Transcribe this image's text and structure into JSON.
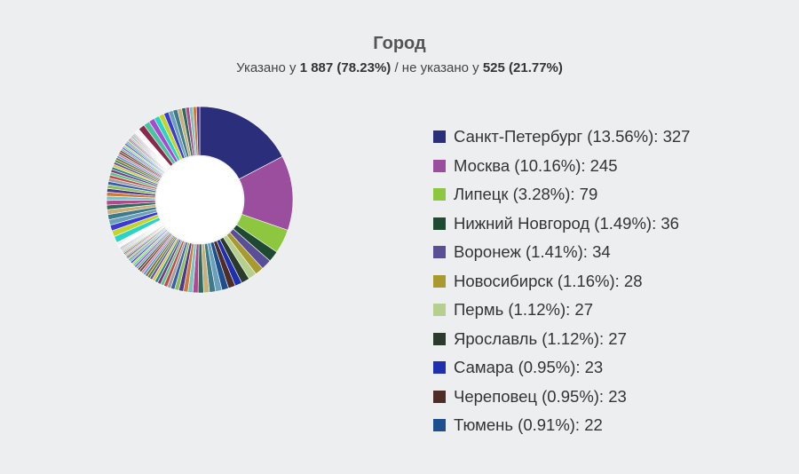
{
  "chart_data": {
    "type": "pie",
    "title": "Город",
    "subtitle": {
      "prefix": "Указано у ",
      "specified": "1 887 (78.23%)",
      "middle": " / не указано у ",
      "unspecified": "525 (21.77%)"
    },
    "slices": [
      {
        "label": "Санкт-Петербург (13.56%): 327",
        "value": 327,
        "color": "#2b2e7a"
      },
      {
        "label": "Москва (10.16%): 245",
        "value": 245,
        "color": "#9b4d9e"
      },
      {
        "label": "Липецк (3.28%): 79",
        "value": 79,
        "color": "#8dc63f"
      },
      {
        "label": "Нижний Новгород (1.49%): 36",
        "value": 36,
        "color": "#1f4a32"
      },
      {
        "label": "Воронеж (1.41%): 34",
        "value": 34,
        "color": "#5a4f96"
      },
      {
        "label": "Новосибирск (1.16%): 28",
        "value": 28,
        "color": "#a89a2e"
      },
      {
        "label": "Пермь (1.12%): 27",
        "value": 27,
        "color": "#b5cf8e"
      },
      {
        "label": "Ярославль (1.12%): 27",
        "value": 27,
        "color": "#2a3b2c"
      },
      {
        "label": "Самара (0.95%): 23",
        "value": 23,
        "color": "#1f2fb0"
      },
      {
        "label": "Череповец (0.95%): 23",
        "value": 23,
        "color": "#4e2c27"
      },
      {
        "label": "Тюмень (0.91%): 22",
        "value": 22,
        "color": "#1d4f8f"
      }
    ],
    "other_colors": [
      "#6aa0b8",
      "#3c7a8c",
      "#c8b07a",
      "#2f6b5d",
      "#b04a8a",
      "#7bc4c4",
      "#d07a3a",
      "#4b3b8a",
      "#8fbf5a",
      "#3a5fa8",
      "#a0a0a0",
      "#c24a4a",
      "#5ac48a",
      "#7a3a7a",
      "#2a8a8a",
      "#d4c84a",
      "#6a4aaa",
      "#4a8a3a",
      "#9a6a3a",
      "#3aa0d4",
      "#e07ab0",
      "#5a5a2a",
      "#8a2a4a",
      "#4ac4a0",
      "#a84ad0",
      "#2ad4c4",
      "#c4d42a",
      "#3a3ad4"
    ]
  }
}
